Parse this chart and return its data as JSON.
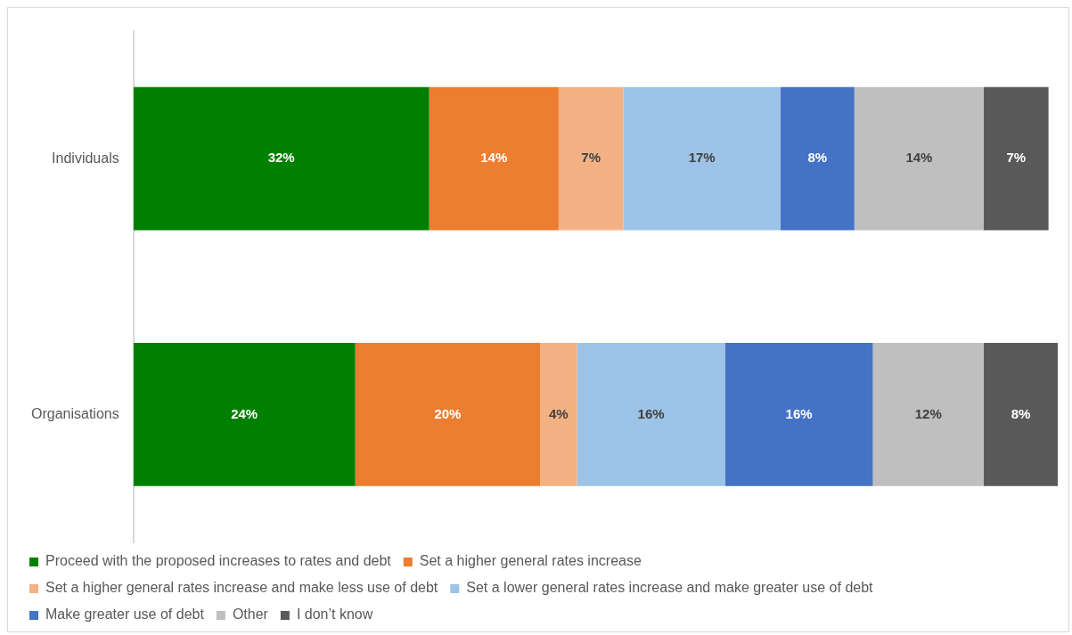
{
  "chart_data": {
    "type": "bar",
    "orientation": "horizontal",
    "stacked": true,
    "legend": "bottom",
    "tick_labels": "y",
    "categories": [
      "Individuals",
      "Organisations"
    ],
    "series": [
      {
        "name": "Proceed with the proposed increases to rates and debt",
        "color": "#008000",
        "values": [
          32,
          24
        ],
        "value_labels": [
          "32%",
          "24%"
        ]
      },
      {
        "name": "Set a higher general rates increase",
        "color": "#ed7d31",
        "values": [
          14,
          20
        ],
        "value_labels": [
          "14%",
          "20%"
        ]
      },
      {
        "name": "Set a higher general rates increase and make less use of debt",
        "color": "#f4b183",
        "values": [
          7,
          4
        ],
        "value_labels": [
          "7%",
          "4%"
        ]
      },
      {
        "name": "Set a lower general rates increase and make greater use of debt",
        "color": "#9dc3e6",
        "values": [
          17,
          16
        ],
        "value_labels": [
          "17%",
          "16%"
        ]
      },
      {
        "name": "Make greater use of debt",
        "color": "#4472c4",
        "values": [
          8,
          16
        ],
        "value_labels": [
          "8%",
          "16%"
        ]
      },
      {
        "name": "Other",
        "color": "#bfbfbf",
        "values": [
          14,
          12
        ],
        "value_labels": [
          "14%",
          "12%"
        ]
      },
      {
        "name": "I don’t know",
        "color": "#595959",
        "values": [
          7,
          8
        ],
        "value_labels": [
          "7%",
          "8%"
        ]
      }
    ]
  }
}
